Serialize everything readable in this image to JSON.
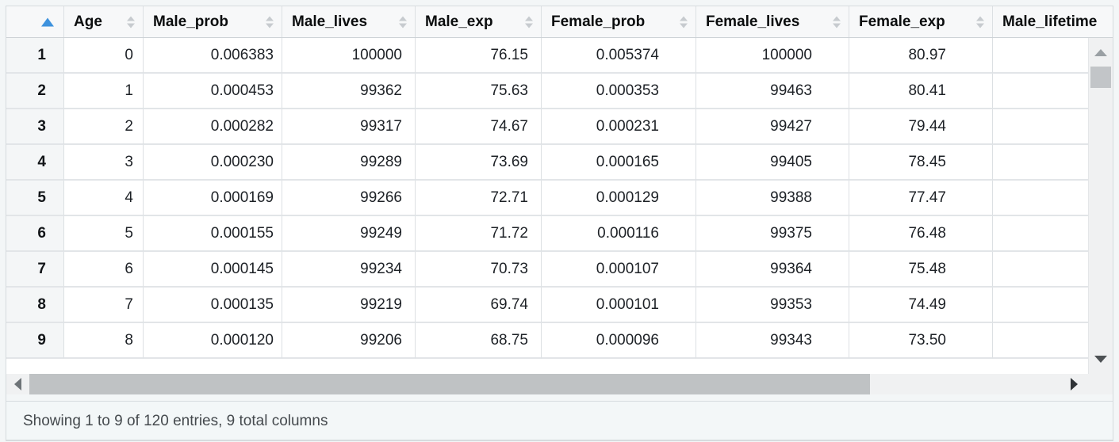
{
  "table": {
    "columns": [
      {
        "label": "",
        "sort_state": "ascending"
      },
      {
        "label": "Age",
        "sort_state": "none"
      },
      {
        "label": "Male_prob",
        "sort_state": "none"
      },
      {
        "label": "Male_lives",
        "sort_state": "none"
      },
      {
        "label": "Male_exp",
        "sort_state": "none"
      },
      {
        "label": "Female_prob",
        "sort_state": "none"
      },
      {
        "label": "Female_lives",
        "sort_state": "none"
      },
      {
        "label": "Female_exp",
        "sort_state": "none"
      },
      {
        "label": "Male_lifetime",
        "sort_state": "none"
      }
    ],
    "rows": [
      [
        "1",
        "0",
        "0.006383",
        "100000",
        "76.15",
        "0.005374",
        "100000",
        "80.97",
        ""
      ],
      [
        "2",
        "1",
        "0.000453",
        "99362",
        "75.63",
        "0.000353",
        "99463",
        "80.41",
        ""
      ],
      [
        "3",
        "2",
        "0.000282",
        "99317",
        "74.67",
        "0.000231",
        "99427",
        "79.44",
        ""
      ],
      [
        "4",
        "3",
        "0.000230",
        "99289",
        "73.69",
        "0.000165",
        "99405",
        "78.45",
        ""
      ],
      [
        "5",
        "4",
        "0.000169",
        "99266",
        "72.71",
        "0.000129",
        "99388",
        "77.47",
        ""
      ],
      [
        "6",
        "5",
        "0.000155",
        "99249",
        "71.72",
        "0.000116",
        "99375",
        "76.48",
        ""
      ],
      [
        "7",
        "6",
        "0.000145",
        "99234",
        "70.73",
        "0.000107",
        "99364",
        "75.48",
        ""
      ],
      [
        "8",
        "7",
        "0.000135",
        "99219",
        "69.74",
        "0.000101",
        "99353",
        "74.49",
        ""
      ],
      [
        "9",
        "8",
        "0.000120",
        "99206",
        "68.75",
        "0.000096",
        "99343",
        "73.50",
        ""
      ]
    ]
  },
  "status_bar": {
    "text": "Showing 1 to 9 of 120 entries, 9 total columns"
  },
  "icons": {
    "sort_ascending_icon": "▲",
    "sort_both_icon": "⬍",
    "scroll_up_icon": "▲",
    "scroll_down_icon": "▼",
    "scroll_left_icon": "◀",
    "scroll_right_icon": "▶"
  },
  "colors": {
    "sort_active_arrow": "#3e92dd",
    "sort_inactive_arrow": "#c7cbcf",
    "header_background": "#f7f8f9",
    "row_index_background": "#f4f6f7",
    "grid_line": "#dce0e3",
    "scrollbar_track": "#f0f1f2",
    "scrollbar_thumb": "#c2c5c8",
    "status_bar_background": "#f3f7f8"
  }
}
